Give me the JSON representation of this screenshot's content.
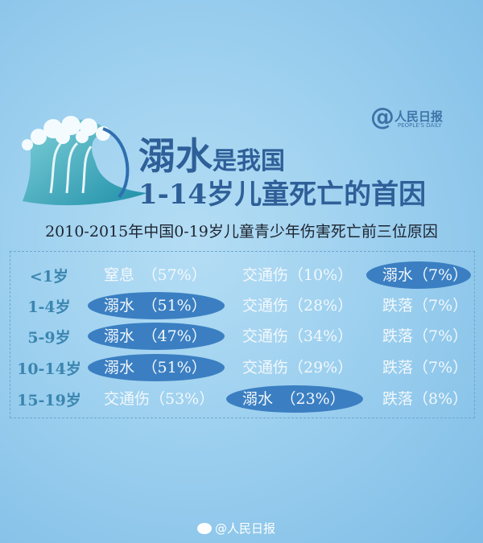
{
  "logo": {
    "at": "@",
    "cn": "人民日报",
    "en": "PEOPLE'S DAILY"
  },
  "title": {
    "big": "溺水",
    "small": "是我国",
    "line2": "1-14岁儿童死亡的首因"
  },
  "subtitle": "2010-2015年中国0-19岁儿童青少年伤害死亡前三位原因",
  "rows": [
    {
      "age": "<1岁",
      "causes": [
        {
          "text": "窒息　（57%）",
          "highlight": false
        },
        {
          "text": "交通伤（10%）",
          "highlight": false
        },
        {
          "text": "溺水（7%）",
          "highlight": true
        }
      ]
    },
    {
      "age": "1-4岁",
      "causes": [
        {
          "text": "溺水　（51%）",
          "highlight": true
        },
        {
          "text": "交通伤（28%）",
          "highlight": false
        },
        {
          "text": "跌落（7%）",
          "highlight": false
        }
      ]
    },
    {
      "age": "5-9岁",
      "causes": [
        {
          "text": "溺水　（47%）",
          "highlight": true
        },
        {
          "text": "交通伤（34%）",
          "highlight": false
        },
        {
          "text": "跌落（7%）",
          "highlight": false
        }
      ]
    },
    {
      "age": "10-14岁",
      "causes": [
        {
          "text": "溺水　（51%）",
          "highlight": true
        },
        {
          "text": "交通伤（29%）",
          "highlight": false
        },
        {
          "text": "跌落（7%）",
          "highlight": false
        }
      ]
    },
    {
      "age": "15-19岁",
      "causes": [
        {
          "text": "交通伤（53%）",
          "highlight": false
        },
        {
          "text": "溺水　（23%）",
          "highlight": true
        },
        {
          "text": "跌落（8%）",
          "highlight": false
        }
      ]
    }
  ],
  "watermark": "@人民日报",
  "colors": {
    "title": "#2f5f98",
    "highlight": "#3b7fc2",
    "age": "#3b86b0"
  }
}
